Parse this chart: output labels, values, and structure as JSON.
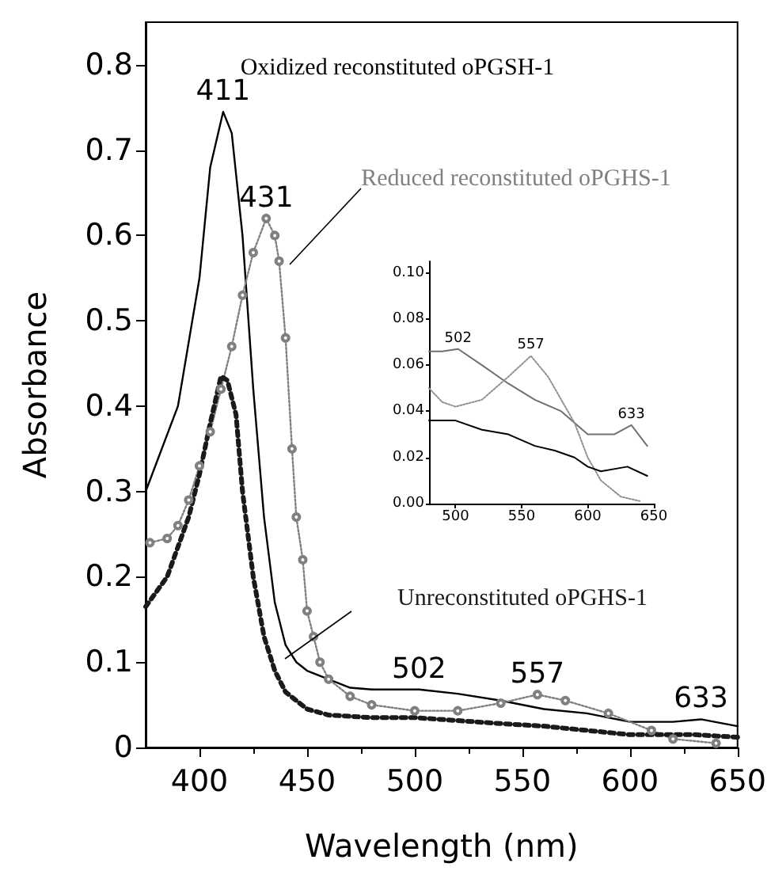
{
  "chart_data": [
    {
      "type": "line",
      "xlabel": "Wavelength (nm)",
      "ylabel": "Absorbance",
      "xlim": [
        375,
        650
      ],
      "ylim": [
        0,
        0.85
      ],
      "xticks": [
        400,
        450,
        500,
        550,
        600,
        650
      ],
      "yticks": [
        0,
        {
          "value": 0.1,
          "label": "0.1"
        },
        {
          "value": 0.2,
          "label": "0.2"
        },
        {
          "value": 0.3,
          "label": "0.3"
        },
        {
          "value": 0.4,
          "label": "0.4"
        },
        {
          "value": 0.5,
          "label": "0.5"
        },
        {
          "value": 0.6,
          "label": "0.6"
        },
        {
          "value": 0.7,
          "label": "0.7"
        },
        {
          "value": 0.8,
          "label": "0.8"
        }
      ],
      "series": [
        {
          "name": "Oxidized reconstituted oPGSH-1",
          "color": "#000000",
          "marker": "none",
          "line_style": "solid",
          "x": [
            375,
            390,
            400,
            405,
            411,
            415,
            420,
            425,
            430,
            435,
            440,
            445,
            450,
            460,
            470,
            480,
            502,
            520,
            540,
            560,
            580,
            600,
            620,
            633,
            650
          ],
          "values": [
            0.3,
            0.4,
            0.55,
            0.68,
            0.745,
            0.72,
            0.6,
            0.42,
            0.27,
            0.17,
            0.12,
            0.1,
            0.09,
            0.08,
            0.07,
            0.068,
            0.068,
            0.063,
            0.055,
            0.045,
            0.04,
            0.03,
            0.03,
            0.033,
            0.025
          ]
        },
        {
          "name": "Reduced reconstituted oPGHS-1",
          "color": "#808080",
          "marker": "circle",
          "line_style": "dotted",
          "x": [
            377,
            385,
            390,
            395,
            400,
            405,
            410,
            415,
            420,
            425,
            431,
            435,
            437,
            440,
            443,
            445,
            448,
            450,
            453,
            456,
            460,
            470,
            480,
            500,
            520,
            540,
            557,
            570,
            590,
            610,
            620,
            640
          ],
          "values": [
            0.24,
            0.245,
            0.26,
            0.29,
            0.33,
            0.37,
            0.42,
            0.47,
            0.53,
            0.58,
            0.62,
            0.6,
            0.57,
            0.48,
            0.35,
            0.27,
            0.22,
            0.16,
            0.13,
            0.1,
            0.08,
            0.06,
            0.05,
            0.043,
            0.043,
            0.052,
            0.062,
            0.055,
            0.04,
            0.02,
            0.01,
            0.005
          ]
        },
        {
          "name": "Unreconstituted oPGHS-1",
          "color": "#1a1a1a",
          "marker": "none",
          "line_style": "dotted",
          "x": [
            375,
            385,
            395,
            400,
            405,
            410,
            413,
            417,
            420,
            425,
            430,
            435,
            440,
            450,
            460,
            480,
            500,
            540,
            560,
            580,
            600,
            630,
            650
          ],
          "values": [
            0.165,
            0.2,
            0.27,
            0.32,
            0.38,
            0.435,
            0.43,
            0.39,
            0.3,
            0.2,
            0.13,
            0.09,
            0.065,
            0.045,
            0.038,
            0.035,
            0.035,
            0.028,
            0.025,
            0.02,
            0.015,
            0.015,
            0.012
          ]
        }
      ],
      "annotations": [
        {
          "text": "411",
          "x": 411,
          "y": 0.745
        },
        {
          "text": "431",
          "x": 431,
          "y": 0.62
        },
        {
          "text": "502",
          "x": 502,
          "y": 0.068
        },
        {
          "text": "557",
          "x": 557,
          "y": 0.062
        },
        {
          "text": "633",
          "x": 633,
          "y": 0.033
        }
      ]
    },
    {
      "type": "line",
      "xlim": [
        480,
        650
      ],
      "ylim": [
        0,
        0.105
      ],
      "xticks": [
        500,
        550,
        600,
        650
      ],
      "yticks": [
        {
          "value": 0,
          "label": "0.00"
        },
        {
          "value": 0.02,
          "label": "0.02"
        },
        {
          "value": 0.04,
          "label": "0.04"
        },
        {
          "value": 0.06,
          "label": "0.06"
        },
        {
          "value": 0.08,
          "label": "0.08"
        },
        {
          "value": 0.1,
          "label": "0.10"
        }
      ],
      "series": [
        {
          "color": "#707070",
          "marker": "none",
          "line_style": "solid",
          "x": [
            480,
            490,
            502,
            520,
            540,
            560,
            580,
            600,
            620,
            633,
            645
          ],
          "values": [
            0.066,
            0.066,
            0.067,
            0.06,
            0.052,
            0.045,
            0.04,
            0.03,
            0.03,
            0.034,
            0.025
          ]
        },
        {
          "color": "#909090",
          "marker": "none",
          "line_style": "dotted",
          "x": [
            480,
            490,
            500,
            520,
            540,
            557,
            570,
            590,
            600,
            610,
            625,
            640
          ],
          "values": [
            0.05,
            0.044,
            0.042,
            0.045,
            0.055,
            0.064,
            0.055,
            0.035,
            0.02,
            0.01,
            0.003,
            0.001
          ]
        },
        {
          "color": "#000000",
          "marker": "none",
          "line_style": "solid",
          "x": [
            480,
            500,
            520,
            540,
            560,
            575,
            590,
            600,
            610,
            630,
            645
          ],
          "values": [
            0.036,
            0.036,
            0.032,
            0.03,
            0.025,
            0.023,
            0.02,
            0.016,
            0.014,
            0.016,
            0.012
          ]
        }
      ],
      "annotations": [
        {
          "text": "502",
          "x": 502,
          "y": 0.067
        },
        {
          "text": "557",
          "x": 557,
          "y": 0.064
        },
        {
          "text": "633",
          "x": 633,
          "y": 0.034
        }
      ]
    }
  ]
}
